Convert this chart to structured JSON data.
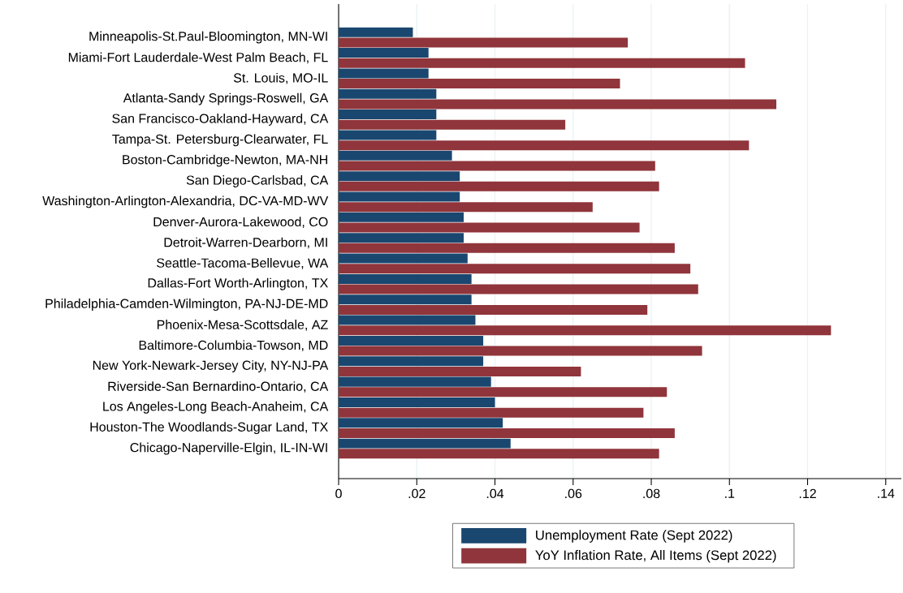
{
  "chart_data": {
    "type": "bar",
    "orientation": "horizontal",
    "categories": [
      "Minneapolis-St.Paul-Bloomington, MN-WI",
      "Miami-Fort Lauderdale-West Palm Beach, FL",
      "St. Louis, MO-IL",
      "Atlanta-Sandy Springs-Roswell, GA",
      "San Francisco-Oakland-Hayward, CA",
      "Tampa-St. Petersburg-Clearwater, FL",
      "Boston-Cambridge-Newton, MA-NH",
      "San Diego-Carlsbad, CA",
      "Washington-Arlington-Alexandria, DC-VA-MD-WV",
      "Denver-Aurora-Lakewood, CO",
      "Detroit-Warren-Dearborn, MI",
      "Seattle-Tacoma-Bellevue, WA",
      "Dallas-Fort Worth-Arlington, TX",
      "Philadelphia-Camden-Wilmington, PA-NJ-DE-MD",
      "Phoenix-Mesa-Scottsdale, AZ",
      "Baltimore-Columbia-Towson, MD",
      "New York-Newark-Jersey City, NY-NJ-PA",
      "Riverside-San Bernardino-Ontario, CA",
      "Los Angeles-Long Beach-Anaheim, CA",
      "Houston-The Woodlands-Sugar Land, TX",
      "Chicago-Naperville-Elgin, IL-IN-WI"
    ],
    "series": [
      {
        "name": "Unemployment Rate (Sept 2022)",
        "color": "#1a476f",
        "values": [
          0.019,
          0.023,
          0.023,
          0.025,
          0.025,
          0.025,
          0.029,
          0.031,
          0.031,
          0.032,
          0.032,
          0.033,
          0.034,
          0.034,
          0.035,
          0.037,
          0.037,
          0.039,
          0.04,
          0.042,
          0.044
        ]
      },
      {
        "name": "YoY Inflation Rate, All Items (Sept 2022)",
        "color": "#90353b",
        "values": [
          0.074,
          0.104,
          0.072,
          0.112,
          0.058,
          0.105,
          0.081,
          0.082,
          0.065,
          0.077,
          0.086,
          0.09,
          0.092,
          0.079,
          0.126,
          0.093,
          0.062,
          0.084,
          0.078,
          0.086,
          0.082
        ]
      }
    ],
    "xlim": [
      0,
      0.144
    ],
    "xticks": [
      0,
      {
        "value": 0.02,
        "label": ".02"
      },
      {
        "value": 0.04,
        "label": ".04"
      },
      {
        "value": 0.06,
        "label": ".06"
      },
      {
        "value": 0.08,
        "label": ".08"
      },
      {
        "value": 0.1,
        "label": ".1"
      },
      {
        "value": 0.12,
        "label": ".12"
      },
      {
        "value": 0.14,
        "label": ".14"
      }
    ],
    "grid": "x",
    "legend": "bottom"
  }
}
